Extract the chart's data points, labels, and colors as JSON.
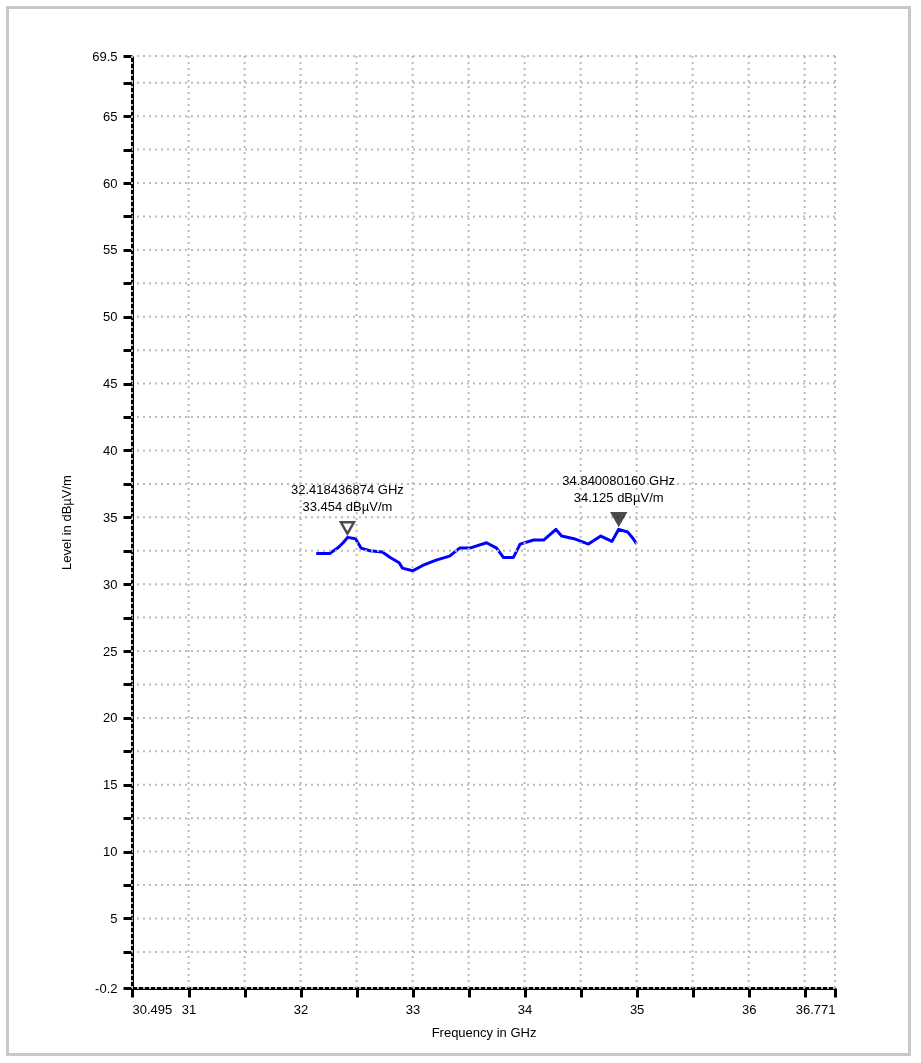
{
  "chart_data": {
    "type": "line",
    "xlabel": "Frequency in GHz",
    "ylabel": "Level in dBµV/m",
    "xlim": [
      30.495,
      36.771
    ],
    "ylim": [
      -0.2,
      69.5
    ],
    "xticks": [
      30.495,
      31,
      {
        "value": 31.5,
        "label": null
      },
      32,
      {
        "value": 32.5,
        "label": null
      },
      33,
      {
        "value": 33.5,
        "label": null
      },
      34,
      {
        "value": 34.5,
        "label": null
      },
      35,
      {
        "value": 35.5,
        "label": null
      },
      36,
      {
        "value": 36.5,
        "label": null
      },
      36.771
    ],
    "yticks": [
      -0.2,
      {
        "value": 2.5,
        "label": null
      },
      5,
      {
        "value": 7.5,
        "label": null
      },
      10,
      {
        "value": 12.5,
        "label": null
      },
      15,
      {
        "value": 17.5,
        "label": null
      },
      20,
      {
        "value": 22.5,
        "label": null
      },
      25,
      {
        "value": 27.5,
        "label": null
      },
      30,
      {
        "value": 32.5,
        "label": null
      },
      35,
      {
        "value": 37.5,
        "label": null
      },
      40,
      {
        "value": 42.5,
        "label": null
      },
      45,
      {
        "value": 47.5,
        "label": null
      },
      50,
      {
        "value": 52.5,
        "label": null
      },
      55,
      {
        "value": 57.5,
        "label": null
      },
      60,
      {
        "value": 62.5,
        "label": null
      },
      65,
      {
        "value": 67.5,
        "label": null
      },
      69.5
    ],
    "grid": true,
    "series": [
      {
        "color": "#0000ff",
        "x": [
          32.14,
          32.26,
          32.33,
          32.38,
          32.42,
          32.49,
          32.54,
          32.62,
          32.73,
          32.8,
          32.88,
          32.91,
          33.0,
          33.09,
          33.21,
          33.33,
          33.42,
          33.51,
          33.66,
          33.75,
          33.81,
          33.9,
          33.96,
          34.08,
          34.17,
          34.28,
          34.33,
          34.44,
          34.57,
          34.68,
          34.78,
          34.84,
          34.92,
          34.97,
          35.0
        ],
        "values": [
          32.3,
          32.3,
          32.7,
          33.1,
          33.5,
          33.4,
          32.7,
          32.5,
          32.4,
          32.0,
          31.6,
          31.2,
          31.0,
          31.4,
          31.8,
          32.1,
          32.7,
          32.7,
          33.1,
          32.7,
          32.0,
          32.0,
          33.0,
          33.3,
          33.3,
          34.1,
          33.6,
          33.4,
          33.0,
          33.6,
          33.2,
          34.1,
          33.9,
          33.4,
          33.0
        ]
      }
    ],
    "annotations": [
      {
        "text": "32.418436874 GHz\n33.454 dBµV/m",
        "x": 32.418,
        "y": 33.454
      },
      {
        "text": "34.840080160 GHz\n34.125 dBµV/m",
        "x": 34.84,
        "y": 34.125
      }
    ]
  }
}
